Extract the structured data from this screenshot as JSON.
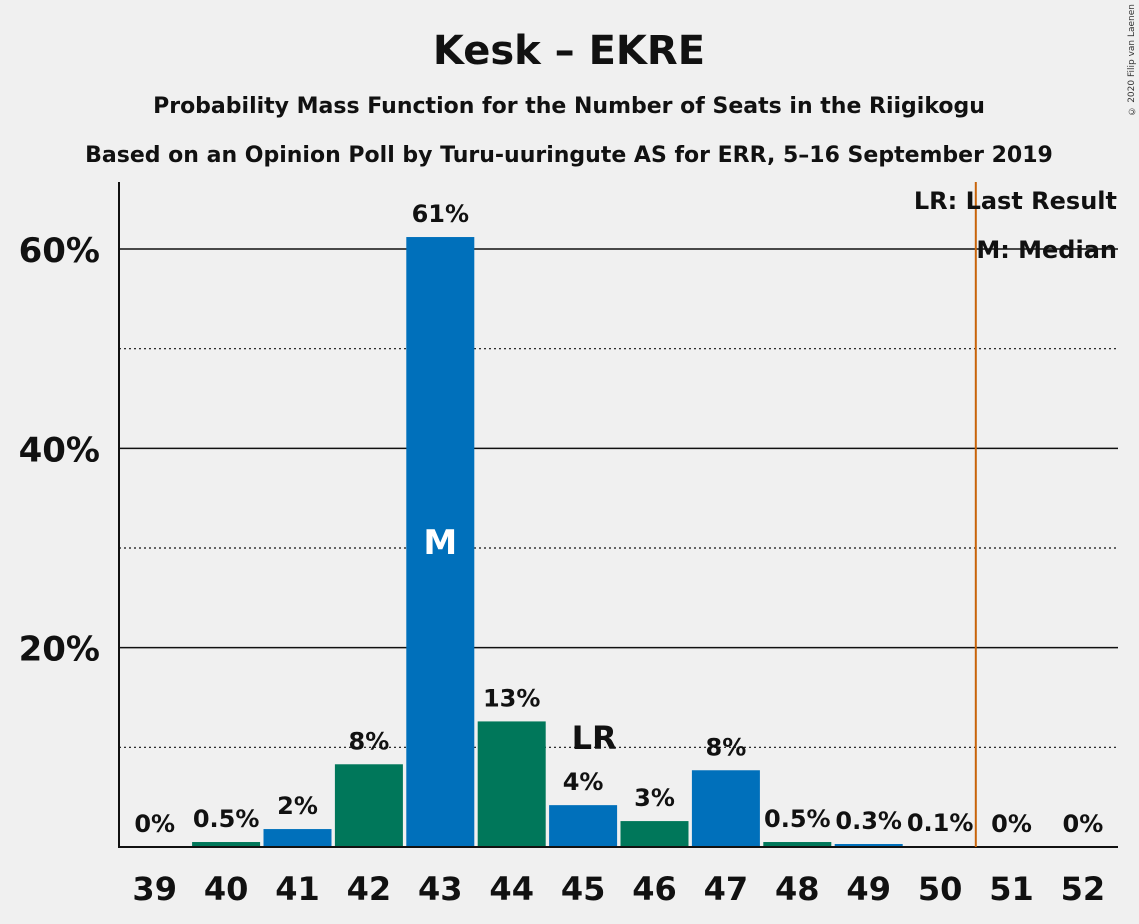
{
  "copyright": "© 2020 Filip van Laenen",
  "chart_data": {
    "type": "bar",
    "title": "Kesk – EKRE",
    "subtitle1": "Probability Mass Function for the Number of Seats in the Riigikogu",
    "subtitle2": "Based on an Opinion Poll by Turu-uuringute AS for ERR, 5–16 September 2019",
    "categories": [
      "39",
      "40",
      "41",
      "42",
      "43",
      "44",
      "45",
      "46",
      "47",
      "48",
      "49",
      "50",
      "51",
      "52"
    ],
    "values": [
      0,
      0.5,
      1.8,
      8.3,
      61.2,
      12.6,
      4.2,
      2.6,
      7.7,
      0.5,
      0.3,
      0.1,
      0,
      0
    ],
    "value_labels": [
      "0%",
      "0.5%",
      "2%",
      "8%",
      "61%",
      "13%",
      "4%",
      "3%",
      "8%",
      "0.5%",
      "0.3%",
      "0.1%",
      "0%",
      "0%"
    ],
    "bar_colors": [
      "#0070bb",
      "#00775a",
      "#0070bb",
      "#00775a",
      "#0070bb",
      "#00775a",
      "#0070bb",
      "#00775a",
      "#0070bb",
      "#00775a",
      "#0070bb",
      "#00775a",
      "#0070bb",
      "#00775a"
    ],
    "ylim": [
      0,
      67
    ],
    "yticks": [
      20,
      40,
      60
    ],
    "ytick_labels": [
      "20%",
      "40%",
      "60%"
    ],
    "minor_gridlines": [
      10,
      30,
      50
    ],
    "median_category": "43",
    "median_marker": "M",
    "last_result_category": "45",
    "last_result_marker": "LR",
    "majority_line_after": "50",
    "majority_line_color": "#c8640a",
    "legend": {
      "last_result": "LR: Last Result",
      "median": "M: Median",
      "placement": "top-right"
    }
  }
}
